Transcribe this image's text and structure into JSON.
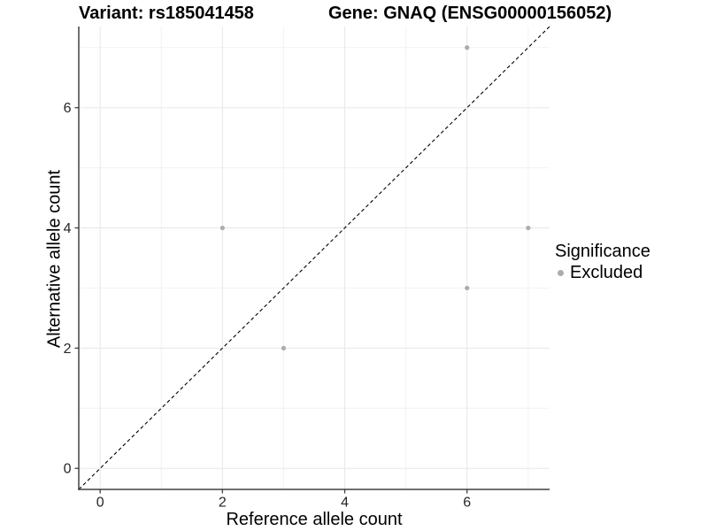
{
  "title": {
    "variant": "Variant: rs185041458",
    "gene": "Gene: GNAQ (ENSG00000156052)"
  },
  "chart_data": {
    "type": "scatter",
    "title": "Variant: rs185041458   Gene: GNAQ (ENSG00000156052)",
    "xlabel": "Reference allele count",
    "ylabel": "Alternative allele count",
    "xlim": [
      -0.35,
      7.35
    ],
    "ylim": [
      -0.35,
      7.35
    ],
    "x_major_ticks": [
      0,
      2,
      4,
      6
    ],
    "y_major_ticks": [
      0,
      2,
      4,
      6
    ],
    "x_minor_ticks": [
      1,
      3,
      5,
      7
    ],
    "y_minor_ticks": [
      1,
      3,
      5,
      7
    ],
    "grid": true,
    "legend_position": "right",
    "series": [
      {
        "name": "Excluded",
        "points": [
          [
            2,
            4
          ],
          [
            3,
            2
          ],
          [
            6,
            3
          ],
          [
            6,
            7
          ],
          [
            7,
            4
          ]
        ],
        "color": "#acacac",
        "point_radius": 2.6
      }
    ],
    "reference_line": {
      "slope": 1,
      "intercept": 0,
      "style": "dashed",
      "color": "#000000"
    }
  },
  "legend": {
    "title": "Significance",
    "entries": [
      {
        "label": "Excluded",
        "color": "#acacac"
      }
    ]
  },
  "colors": {
    "background": "#ffffff",
    "grid_major": "#e7e7e7",
    "grid_minor": "#f2f2f2",
    "axis_line": "#404040",
    "tick_label": "#262626",
    "point": "#acacac",
    "reference_line": "#000000"
  }
}
